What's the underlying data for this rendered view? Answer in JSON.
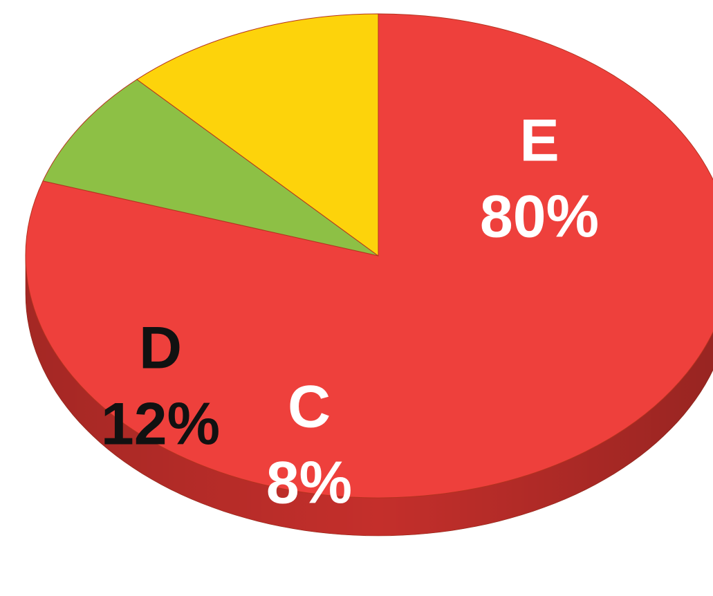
{
  "chart_data": {
    "type": "pie",
    "style": "3d-tilted",
    "title": "",
    "start_angle_deg": 90,
    "direction": "clockwise",
    "slices": [
      {
        "label": "E",
        "value": 80,
        "value_label": "80%",
        "color": "#EE403C",
        "side_color": "#C8302C",
        "label_color": "#FFFFFF"
      },
      {
        "label": "C",
        "value": 8,
        "value_label": "8%",
        "color": "#8DC045",
        "side_color": "#76A836",
        "label_color": "#FFFFFF"
      },
      {
        "label": "D",
        "value": 12,
        "value_label": "12%",
        "color": "#FDD30B",
        "side_color": "#D9B000",
        "label_color": "#111111"
      }
    ],
    "legend": "none"
  }
}
